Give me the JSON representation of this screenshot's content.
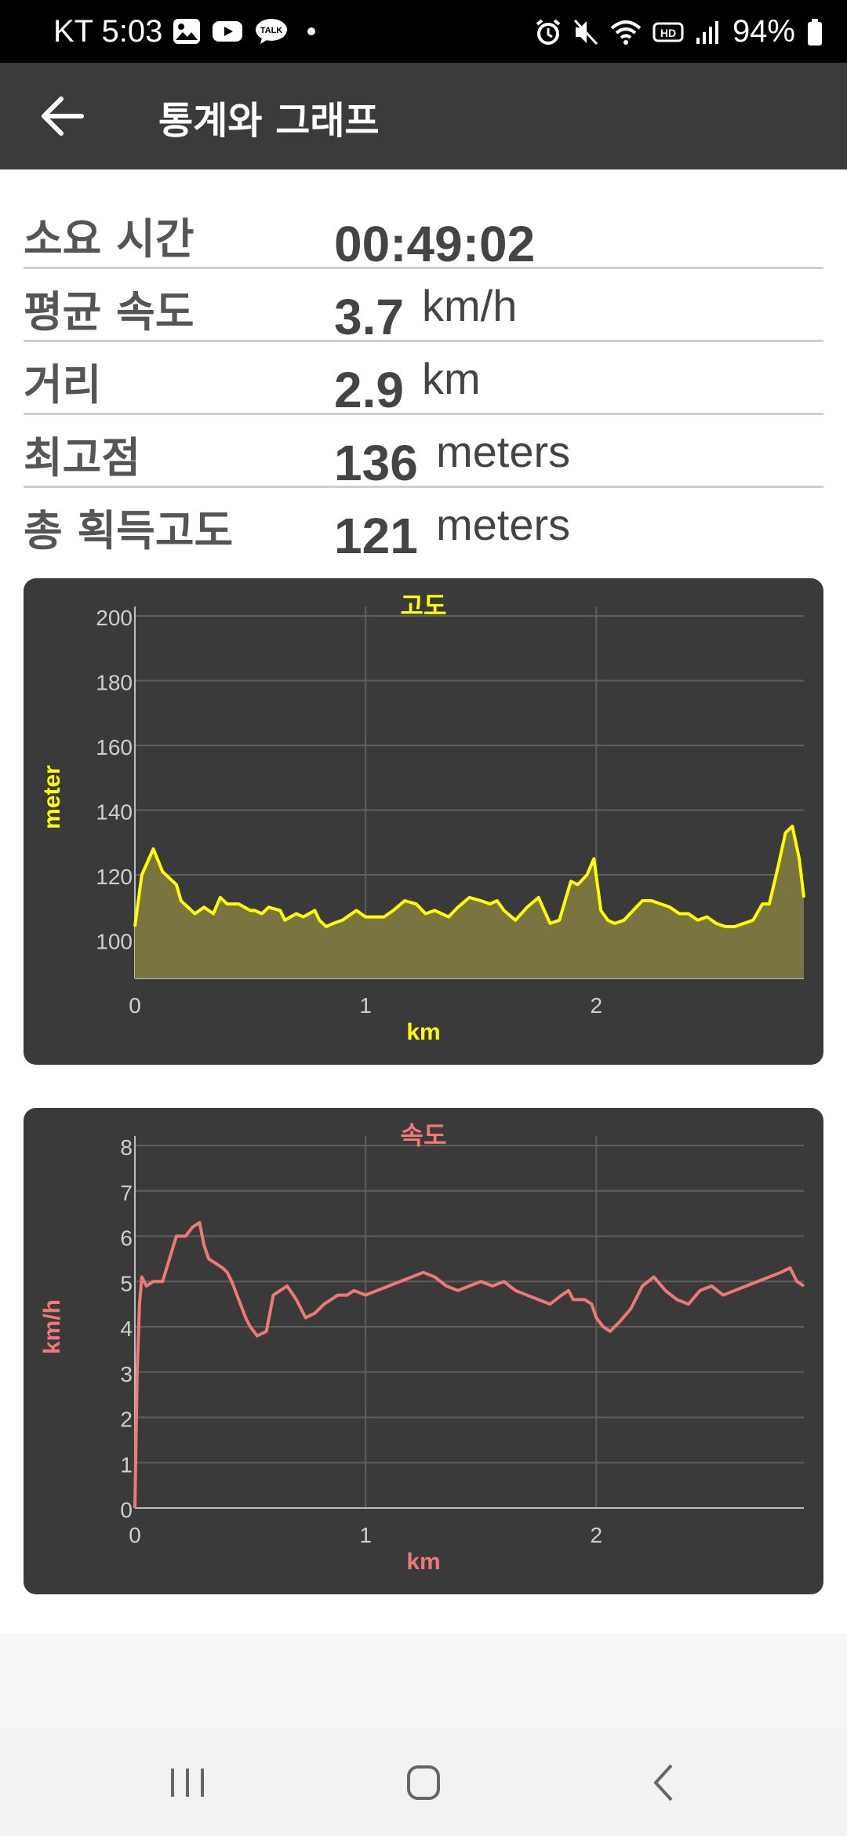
{
  "status_bar": {
    "time": "KT 5:03",
    "battery": "94%",
    "left_icons": [
      "gallery-icon",
      "youtube-icon",
      "kakaotalk-icon",
      "dot-icon"
    ],
    "right_icons": [
      "alarm-icon",
      "mute-icon",
      "wifi-icon",
      "hd-icon",
      "signal-icon",
      "battery-icon"
    ],
    "talk_label": "TALK",
    "hd_label": "HD"
  },
  "app_bar": {
    "title": "통계와 그래프"
  },
  "stats": [
    {
      "label": "소요 시간",
      "value": "00:49:02",
      "unit": ""
    },
    {
      "label": "평균 속도",
      "value": "3.7",
      "unit": "km/h"
    },
    {
      "label": "거리",
      "value": "2.9",
      "unit": "km"
    },
    {
      "label": "최고점",
      "value": "136",
      "unit": "meters"
    },
    {
      "label": "총 획득고도",
      "value": "121",
      "unit": "meters"
    }
  ],
  "chart_data": [
    {
      "type": "area",
      "title": "고도",
      "xlabel": "km",
      "ylabel": "meter",
      "color": "#ffff00",
      "fill": "#7a7440",
      "xlim": [
        0,
        2.9
      ],
      "ylim": [
        88,
        200
      ],
      "x_ticks": [
        0,
        1,
        2
      ],
      "y_ticks": [
        100,
        120,
        140,
        160,
        180,
        200
      ],
      "grid": true,
      "x": [
        0,
        0.03,
        0.08,
        0.12,
        0.18,
        0.2,
        0.26,
        0.3,
        0.34,
        0.37,
        0.4,
        0.45,
        0.5,
        0.52,
        0.55,
        0.58,
        0.63,
        0.65,
        0.7,
        0.73,
        0.78,
        0.8,
        0.83,
        0.86,
        0.9,
        0.96,
        1.0,
        1.03,
        1.08,
        1.12,
        1.17,
        1.22,
        1.26,
        1.3,
        1.33,
        1.36,
        1.4,
        1.45,
        1.5,
        1.54,
        1.57,
        1.6,
        1.65,
        1.7,
        1.75,
        1.8,
        1.84,
        1.89,
        1.92,
        1.96,
        1.99,
        2.02,
        2.05,
        2.08,
        2.12,
        2.16,
        2.2,
        2.24,
        2.28,
        2.32,
        2.36,
        2.4,
        2.44,
        2.48,
        2.52,
        2.56,
        2.6,
        2.64,
        2.68,
        2.72,
        2.75,
        2.79,
        2.82,
        2.85,
        2.88,
        2.9
      ],
      "y": [
        104,
        120,
        128,
        121,
        117,
        112,
        108,
        110,
        108,
        113,
        111,
        111,
        109,
        109,
        108,
        110,
        109,
        106,
        108,
        107,
        109,
        106,
        104,
        105,
        106,
        109,
        107,
        107,
        107,
        109,
        112,
        111,
        108,
        109,
        108,
        107,
        110,
        113,
        112,
        111,
        112,
        109,
        106,
        110,
        113,
        105,
        106,
        118,
        117,
        120,
        125,
        109,
        106,
        105,
        106,
        109,
        112,
        112,
        111,
        110,
        108,
        108,
        106,
        107,
        105,
        104,
        104,
        105,
        106,
        111,
        111,
        123,
        133,
        135,
        125,
        113
      ]
    },
    {
      "type": "line",
      "title": "속도",
      "xlabel": "km",
      "ylabel": "km/h",
      "color": "#f07878",
      "xlim": [
        0,
        2.9
      ],
      "ylim": [
        0,
        8
      ],
      "x_ticks": [
        0,
        1,
        2
      ],
      "y_ticks": [
        0,
        1,
        2,
        3,
        4,
        5,
        6,
        7,
        8
      ],
      "grid": true,
      "x": [
        0,
        0.01,
        0.02,
        0.03,
        0.05,
        0.08,
        0.12,
        0.15,
        0.18,
        0.22,
        0.25,
        0.28,
        0.3,
        0.32,
        0.35,
        0.38,
        0.4,
        0.42,
        0.45,
        0.48,
        0.5,
        0.53,
        0.57,
        0.6,
        0.63,
        0.66,
        0.7,
        0.74,
        0.78,
        0.82,
        0.85,
        0.88,
        0.92,
        0.95,
        1.0,
        1.05,
        1.1,
        1.15,
        1.2,
        1.25,
        1.3,
        1.35,
        1.4,
        1.45,
        1.5,
        1.55,
        1.6,
        1.65,
        1.7,
        1.75,
        1.8,
        1.85,
        1.88,
        1.9,
        1.95,
        1.98,
        2.0,
        2.03,
        2.06,
        2.1,
        2.15,
        2.2,
        2.25,
        2.3,
        2.35,
        2.4,
        2.45,
        2.5,
        2.55,
        2.6,
        2.65,
        2.7,
        2.75,
        2.8,
        2.84,
        2.87,
        2.9
      ],
      "y": [
        0,
        3.0,
        4.5,
        5.1,
        4.9,
        5.0,
        5.0,
        5.5,
        6.0,
        6.0,
        6.2,
        6.3,
        5.8,
        5.5,
        5.4,
        5.3,
        5.2,
        5.0,
        4.6,
        4.2,
        4.0,
        3.8,
        3.9,
        4.7,
        4.8,
        4.9,
        4.6,
        4.2,
        4.3,
        4.5,
        4.6,
        4.7,
        4.7,
        4.8,
        4.7,
        4.8,
        4.9,
        5.0,
        5.1,
        5.2,
        5.1,
        4.9,
        4.8,
        4.9,
        5.0,
        4.9,
        5.0,
        4.8,
        4.7,
        4.6,
        4.5,
        4.7,
        4.8,
        4.6,
        4.6,
        4.5,
        4.2,
        4.0,
        3.9,
        4.1,
        4.4,
        4.9,
        5.1,
        4.8,
        4.6,
        4.5,
        4.8,
        4.9,
        4.7,
        4.8,
        4.9,
        5.0,
        5.1,
        5.2,
        5.3,
        5.0,
        4.9
      ]
    }
  ]
}
